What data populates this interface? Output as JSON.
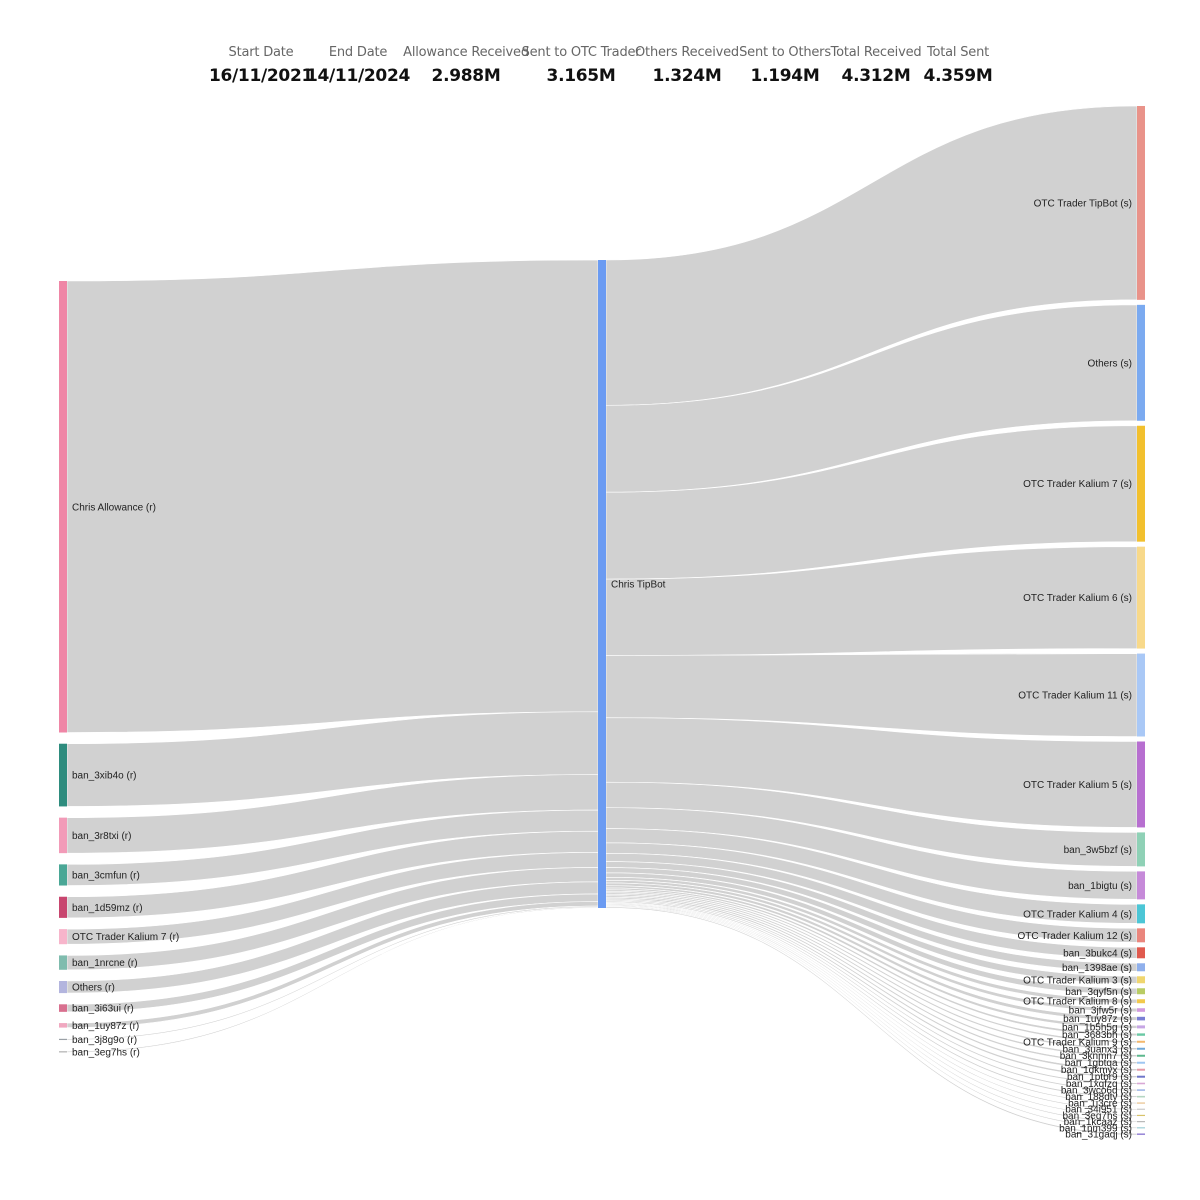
{
  "summary": {
    "start_date_label": "Start Date",
    "start_date": "16/11/2021",
    "end_date_label": "End Date",
    "end_date": "14/11/2024",
    "allowance_label": "Allowance Received",
    "allowance": "2.988M",
    "sent_otc_label": "Sent to OTC Trader",
    "sent_otc": "3.165M",
    "others_received_label": "Others Received",
    "others_received": "1.324M",
    "sent_others_label": "Sent to Others",
    "sent_others": "1.194M",
    "total_received_label": "Total Received",
    "total_received": "4.312M",
    "total_sent_label": "Total Sent",
    "total_sent": "4.359M"
  },
  "sankey": {
    "link_color": "#cfcfcf",
    "center": {
      "label": "Chris TipBot",
      "color": "#6b9bf2"
    },
    "sources": [
      {
        "label": "Chris Allowance (r)",
        "value": 2988,
        "color": "#ef86a6"
      },
      {
        "label": "ban_3xib4o (r)",
        "value": 415,
        "color": "#2e8c7e"
      },
      {
        "label": "ban_3r8txi (r)",
        "value": 235,
        "color": "#f29bb8"
      },
      {
        "label": "ban_3cmfun (r)",
        "value": 140,
        "color": "#4aa796"
      },
      {
        "label": "ban_1d59mz (r)",
        "value": 140,
        "color": "#c8466f"
      },
      {
        "label": "OTC Trader Kalium 7 (r)",
        "value": 100,
        "color": "#f7b5cb"
      },
      {
        "label": "ban_1nrcne (r)",
        "value": 95,
        "color": "#7fbcae"
      },
      {
        "label": "Others (r)",
        "value": 80,
        "color": "#b3b5de"
      },
      {
        "label": "ban_3i63ui (r)",
        "value": 50,
        "color": "#d8708f"
      },
      {
        "label": "ban_1uy87z (r)",
        "value": 30,
        "color": "#f0a8c0"
      },
      {
        "label": "ban_3j8g9o (r)",
        "value": 8,
        "color": "#9aa0a6"
      },
      {
        "label": "ban_3eg7hs (r)",
        "value": 5,
        "color": "#b0b0b0"
      }
    ],
    "targets": [
      {
        "label": "OTC Trader TipBot (s)",
        "value": 970,
        "color": "#e9938a"
      },
      {
        "label": "Others (s)",
        "value": 580,
        "color": "#7baaf0"
      },
      {
        "label": "OTC Trader Kalium 7 (s)",
        "value": 580,
        "color": "#f2c02e"
      },
      {
        "label": "OTC Trader Kalium 6 (s)",
        "value": 510,
        "color": "#f8d98a"
      },
      {
        "label": "OTC Trader Kalium 11 (s)",
        "value": 415,
        "color": "#a9c8f6"
      },
      {
        "label": "OTC Trader Kalium 5 (s)",
        "value": 430,
        "color": "#b76fd0"
      },
      {
        "label": "ban_3w5bzf (s)",
        "value": 170,
        "color": "#8fd1b6"
      },
      {
        "label": "ban_1bigtu (s)",
        "value": 140,
        "color": "#c68ad9"
      },
      {
        "label": "OTC Trader Kalium 4 (s)",
        "value": 95,
        "color": "#4cc6d6"
      },
      {
        "label": "OTC Trader Kalium 12 (s)",
        "value": 70,
        "color": "#ea867d"
      },
      {
        "label": "ban_3bukc4 (s)",
        "value": 55,
        "color": "#e05a4e"
      },
      {
        "label": "ban_1398ae (s)",
        "value": 40,
        "color": "#8fb0ec"
      },
      {
        "label": "OTC Trader Kalium 3 (s)",
        "value": 35,
        "color": "#f0d66f"
      },
      {
        "label": "ban_3qyf5n (s)",
        "value": 30,
        "color": "#b9cc64"
      },
      {
        "label": "OTC Trader Kalium 8 (s)",
        "value": 20,
        "color": "#f2c94c"
      },
      {
        "label": "ban_3jfw5r (s)",
        "value": 18,
        "color": "#d29ade"
      },
      {
        "label": "ban_1uy87z (s)",
        "value": 18,
        "color": "#7a7fd4"
      },
      {
        "label": "ban_1b5h5g (s)",
        "value": 15,
        "color": "#c7a6e4"
      },
      {
        "label": "ban_3683bh (s)",
        "value": 12,
        "color": "#6ac9a4"
      },
      {
        "label": "OTC Trader Kalium 9 (s)",
        "value": 10,
        "color": "#f4b86c"
      },
      {
        "label": "ban_3uanx3 (s)",
        "value": 10,
        "color": "#70a8d8"
      },
      {
        "label": "ban_3knmn7 (s)",
        "value": 10,
        "color": "#5cb88e"
      },
      {
        "label": "ban_1gbtqa (s)",
        "value": 10,
        "color": "#9ec7f2"
      },
      {
        "label": "ban_1dkmyx (s)",
        "value": 10,
        "color": "#e59aa7"
      },
      {
        "label": "ban_1ptbr9 (s)",
        "value": 10,
        "color": "#6f76c9"
      },
      {
        "label": "ban_1xqfzq (s)",
        "value": 8,
        "color": "#d9a9d6"
      },
      {
        "label": "ban_3wco6q (s)",
        "value": 8,
        "color": "#a0b8e8"
      },
      {
        "label": "ban_188dty (s)",
        "value": 8,
        "color": "#b5d6c2"
      },
      {
        "label": "ban_1i3cre (s)",
        "value": 6,
        "color": "#e8c28c"
      },
      {
        "label": "ban_34i951 (s)",
        "value": 6,
        "color": "#c9c9c9"
      },
      {
        "label": "ban_3eg7hs (s)",
        "value": 6,
        "color": "#d8c36a"
      },
      {
        "label": "ban_1kcaaz (s)",
        "value": 6,
        "color": "#b8b8b8"
      },
      {
        "label": "ban_1nm399 (s)",
        "value": 6,
        "color": "#9fd0d8"
      },
      {
        "label": "ban_31gaqj (s)",
        "value": 8,
        "color": "#9b8ad8"
      }
    ]
  }
}
